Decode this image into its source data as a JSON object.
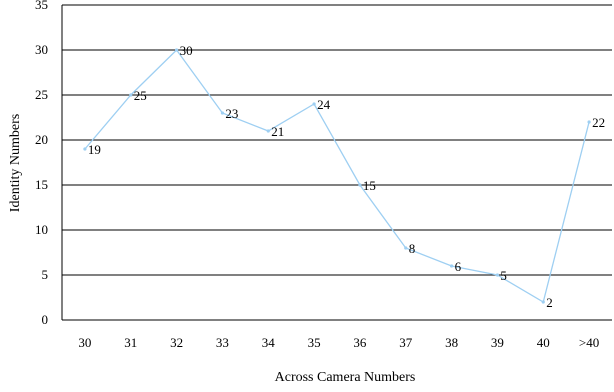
{
  "chart_data": {
    "type": "line",
    "categories": [
      "30",
      "31",
      "32",
      "33",
      "34",
      "35",
      "36",
      "37",
      "38",
      "39",
      "40",
      ">40"
    ],
    "values": [
      19,
      25,
      30,
      23,
      21,
      24,
      15,
      8,
      6,
      5,
      2,
      22
    ],
    "xlabel": "Across Camera Numbers",
    "ylabel": "Identity Numbers",
    "ylim": [
      0,
      35
    ],
    "yticks": [
      0,
      5,
      10,
      15,
      20,
      25,
      30,
      35
    ],
    "grid": true,
    "legend": "none",
    "line_color": "#9ecff2",
    "grid_color": "#000000"
  }
}
